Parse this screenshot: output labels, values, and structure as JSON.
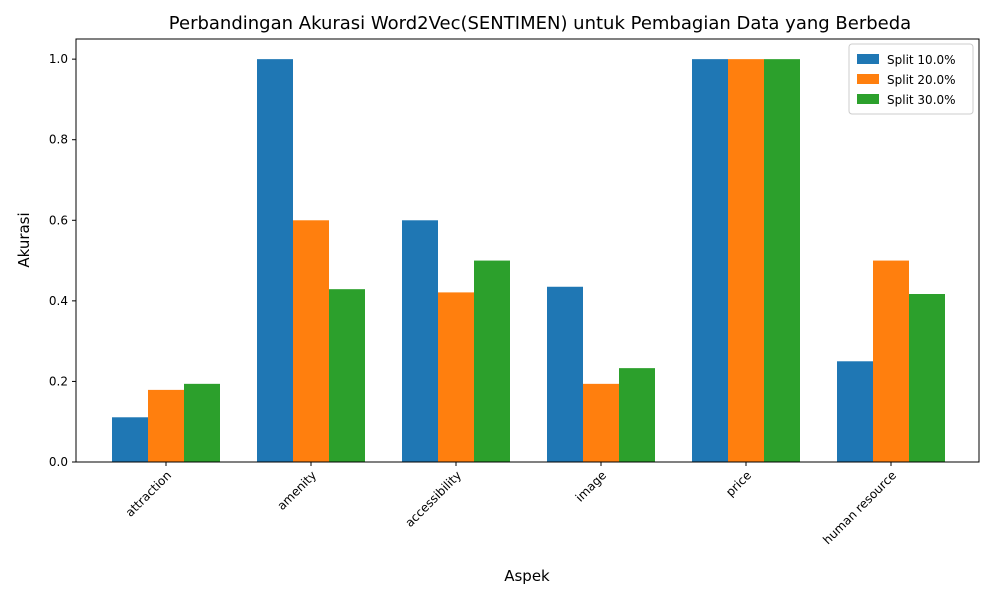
{
  "chart_data": {
    "type": "bar",
    "title": "Perbandingan Akurasi Word2Vec(SENTIMEN) untuk Pembagian Data yang Berbeda",
    "xlabel": "Aspek",
    "ylabel": "Akurasi",
    "categories": [
      "attraction",
      "amenity",
      "accessibility",
      "image",
      "price",
      "human resource"
    ],
    "series": [
      {
        "name": "Split 10.0%",
        "color": "#1f77b4",
        "values": [
          0.111,
          1.0,
          0.6,
          0.435,
          1.0,
          0.25
        ]
      },
      {
        "name": "Split 20.0%",
        "color": "#ff7f0e",
        "values": [
          0.179,
          0.6,
          0.421,
          0.194,
          1.0,
          0.5
        ]
      },
      {
        "name": "Split 30.0%",
        "color": "#2ca02c",
        "values": [
          0.194,
          0.429,
          0.5,
          0.233,
          1.0,
          0.417
        ]
      }
    ],
    "ylim": [
      0,
      1.05
    ],
    "yticks": [
      "0.0",
      "0.2",
      "0.4",
      "0.6",
      "0.8",
      "1.0"
    ],
    "grid": false,
    "legend_position": "top-right"
  }
}
